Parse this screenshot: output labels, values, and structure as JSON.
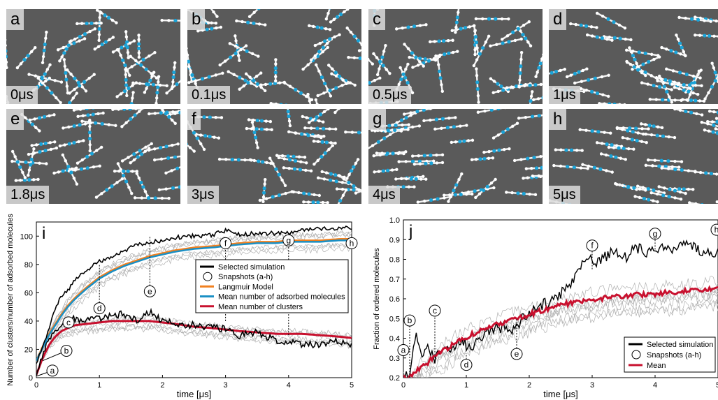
{
  "snapshots": [
    {
      "letter": "a",
      "time": "0μs"
    },
    {
      "letter": "b",
      "time": "0.1μs"
    },
    {
      "letter": "c",
      "time": "0.5μs"
    },
    {
      "letter": "d",
      "time": "1μs"
    },
    {
      "letter": "e",
      "time": "1.8μs"
    },
    {
      "letter": "f",
      "time": "3μs"
    },
    {
      "letter": "g",
      "time": "4μs"
    },
    {
      "letter": "h",
      "time": "5μs"
    }
  ],
  "chart_data": [
    {
      "panel": "i",
      "type": "line",
      "xlabel": "time [μs]",
      "ylabel": "Number of clusters/number of adsorbed molecules",
      "xlim": [
        0,
        5
      ],
      "ylim": [
        0,
        110
      ],
      "xticks": [
        0,
        1,
        2,
        3,
        4,
        5
      ],
      "yticks": [
        0,
        20,
        40,
        60,
        80,
        100
      ],
      "legend_position": "center-right",
      "legend": [
        "Selected simulation",
        "Snapshots (a-h)",
        "Langmuir Model",
        "Mean number of adsorbed molecules",
        "Mean number of clusters"
      ],
      "colors": {
        "selected": "#000000",
        "langmuir": "#f08020",
        "mean_adsorbed": "#1a8fc4",
        "mean_clusters": "#c8102e",
        "background_runs": "#b0b0b0"
      },
      "series": [
        {
          "name": "Selected simulation",
          "x": [
            0,
            0.1,
            0.2,
            0.3,
            0.4,
            0.5,
            0.6,
            0.8,
            1.0,
            1.2,
            1.4,
            1.6,
            1.8,
            2.0,
            2.2,
            2.5,
            2.8,
            3.0,
            3.2,
            3.5,
            3.8,
            4.0,
            4.2,
            4.5,
            4.8,
            5.0
          ],
          "values": [
            10,
            22,
            35,
            48,
            58,
            62,
            68,
            76,
            82,
            86,
            90,
            94,
            96,
            97,
            99,
            100,
            101,
            104,
            101,
            102,
            102,
            102,
            104,
            105,
            106,
            106
          ]
        },
        {
          "name": "Langmuir Model",
          "x": [
            0,
            0.1,
            0.2,
            0.3,
            0.4,
            0.5,
            0.6,
            0.8,
            1.0,
            1.2,
            1.4,
            1.6,
            1.8,
            2.0,
            2.2,
            2.5,
            2.8,
            3.0,
            3.2,
            3.5,
            3.8,
            4.0,
            4.2,
            4.5,
            4.8,
            5.0
          ],
          "values": [
            12,
            22,
            31,
            38,
            45,
            51,
            56,
            64,
            71,
            76,
            80,
            83,
            86,
            88,
            90,
            92,
            93,
            94,
            95,
            96,
            96,
            97,
            97,
            97,
            98,
            98
          ]
        },
        {
          "name": "Mean number of adsorbed molecules",
          "x": [
            0,
            0.1,
            0.2,
            0.3,
            0.4,
            0.5,
            0.6,
            0.8,
            1.0,
            1.2,
            1.4,
            1.6,
            1.8,
            2.0,
            2.2,
            2.5,
            2.8,
            3.0,
            3.2,
            3.5,
            3.8,
            4.0,
            4.2,
            4.5,
            4.8,
            5.0
          ],
          "values": [
            12,
            21,
            30,
            37,
            44,
            50,
            55,
            63,
            70,
            75,
            79,
            82,
            85,
            87,
            89,
            91,
            92,
            93,
            94,
            95,
            95,
            96,
            96,
            96,
            97,
            97
          ]
        },
        {
          "name": "Mean number of clusters",
          "x": [
            0,
            0.1,
            0.2,
            0.3,
            0.4,
            0.5,
            0.6,
            0.8,
            1.0,
            1.2,
            1.4,
            1.6,
            1.8,
            2.0,
            2.2,
            2.5,
            2.8,
            3.0,
            3.2,
            3.5,
            3.8,
            4.0,
            4.2,
            4.5,
            4.8,
            5.0
          ],
          "values": [
            2,
            14,
            23,
            29,
            33,
            35,
            37,
            38,
            39,
            40,
            40,
            40,
            40,
            39,
            38,
            36,
            35,
            34,
            33,
            32,
            31,
            31,
            31,
            30,
            29,
            28
          ]
        },
        {
          "name": "Selected simulation (clusters)",
          "x": [
            0,
            0.1,
            0.2,
            0.3,
            0.4,
            0.5,
            0.6,
            0.8,
            1.0,
            1.2,
            1.4,
            1.6,
            1.8,
            2.0,
            2.2,
            2.5,
            2.8,
            3.0,
            3.2,
            3.5,
            3.8,
            4.0,
            4.2,
            4.5,
            4.8,
            5.0
          ],
          "values": [
            2,
            16,
            28,
            34,
            38,
            40,
            42,
            40,
            42,
            44,
            45,
            40,
            46,
            40,
            38,
            37,
            36,
            34,
            30,
            32,
            26,
            25,
            23,
            24,
            26,
            22
          ]
        }
      ],
      "annotations": [
        {
          "label": "a",
          "x": 0
        },
        {
          "label": "b",
          "x": 0.1
        },
        {
          "label": "c",
          "x": 0.5
        },
        {
          "label": "d",
          "x": 1
        },
        {
          "label": "e",
          "x": 1.8
        },
        {
          "label": "f",
          "x": 3
        },
        {
          "label": "g",
          "x": 4
        },
        {
          "label": "h",
          "x": 5
        }
      ]
    },
    {
      "panel": "j",
      "type": "line",
      "xlabel": "time [μs]",
      "ylabel": "Fraction of ordered molecules",
      "xlim": [
        0,
        5
      ],
      "ylim": [
        0.2,
        1.0
      ],
      "xticks": [
        0,
        1,
        2,
        3,
        4,
        5
      ],
      "yticks": [
        0.2,
        0.3,
        0.4,
        0.5,
        0.6,
        0.7,
        0.8,
        0.9,
        1.0
      ],
      "legend_position": "bottom-right",
      "legend": [
        "Selected simulation",
        "Snapshots (a-h)",
        "Mean"
      ],
      "colors": {
        "selected": "#000000",
        "mean": "#c8102e",
        "background_runs": "#b0b0b0"
      },
      "series": [
        {
          "name": "Selected simulation",
          "x": [
            0,
            0.1,
            0.2,
            0.3,
            0.4,
            0.5,
            0.7,
            0.9,
            1.1,
            1.3,
            1.5,
            1.7,
            1.9,
            2.1,
            2.3,
            2.5,
            2.7,
            2.9,
            3.1,
            3.3,
            3.5,
            3.7,
            3.9,
            4.1,
            4.3,
            4.5,
            4.7,
            4.9,
            5.0
          ],
          "values": [
            0.2,
            0.21,
            0.45,
            0.3,
            0.36,
            0.3,
            0.34,
            0.38,
            0.35,
            0.42,
            0.46,
            0.44,
            0.5,
            0.55,
            0.58,
            0.62,
            0.7,
            0.82,
            0.78,
            0.84,
            0.8,
            0.86,
            0.83,
            0.87,
            0.84,
            0.88,
            0.85,
            0.82,
            0.86
          ]
        },
        {
          "name": "Mean",
          "x": [
            0,
            0.1,
            0.2,
            0.3,
            0.4,
            0.5,
            0.7,
            0.9,
            1.1,
            1.3,
            1.5,
            1.7,
            1.9,
            2.1,
            2.3,
            2.5,
            2.7,
            2.9,
            3.1,
            3.3,
            3.5,
            3.7,
            3.9,
            4.1,
            4.3,
            4.5,
            4.7,
            4.9,
            5.0
          ],
          "values": [
            0.2,
            0.2,
            0.23,
            0.26,
            0.28,
            0.31,
            0.35,
            0.39,
            0.42,
            0.45,
            0.47,
            0.49,
            0.51,
            0.53,
            0.55,
            0.57,
            0.58,
            0.59,
            0.6,
            0.61,
            0.61,
            0.62,
            0.62,
            0.63,
            0.63,
            0.64,
            0.64,
            0.65,
            0.65
          ]
        }
      ],
      "annotations": [
        {
          "label": "a",
          "x": 0
        },
        {
          "label": "b",
          "x": 0.1
        },
        {
          "label": "c",
          "x": 0.5
        },
        {
          "label": "d",
          "x": 1
        },
        {
          "label": "e",
          "x": 1.8
        },
        {
          "label": "f",
          "x": 3
        },
        {
          "label": "g",
          "x": 4
        },
        {
          "label": "h",
          "x": 5
        }
      ]
    }
  ],
  "panel_labels": {
    "i": "i",
    "j": "j"
  }
}
